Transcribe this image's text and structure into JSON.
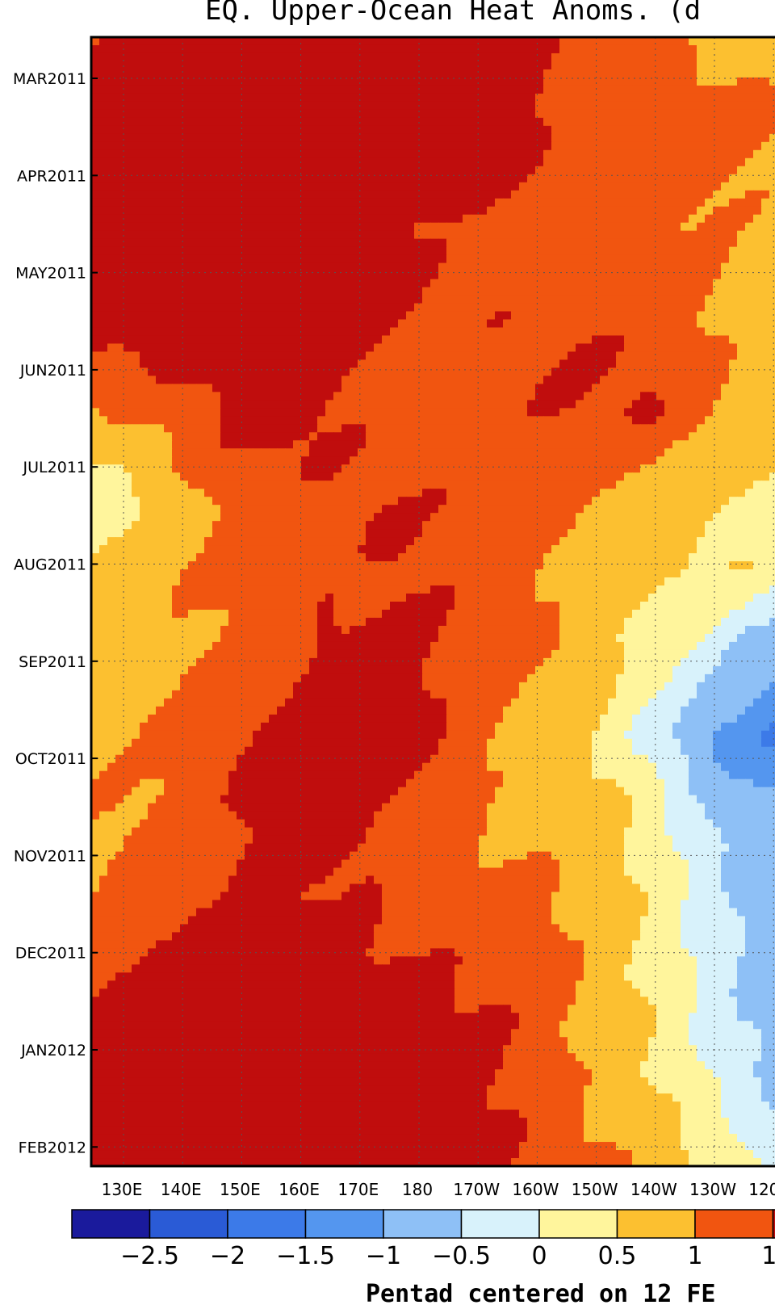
{
  "chart_data": {
    "type": "heatmap",
    "title": "EQ. Upper-Ocean Heat Anoms. (d",
    "footer": "Pentad centered on 12 FE",
    "y_ticks": [
      "MAR2011",
      "APR2011",
      "MAY2011",
      "JUN2011",
      "JUL2011",
      "AUG2011",
      "SEP2011",
      "OCT2011",
      "NOV2011",
      "DEC2011",
      "JAN2012",
      "FEB2012"
    ],
    "x_ticks": [
      "130E",
      "140E",
      "150E",
      "160E",
      "170E",
      "180",
      "170W",
      "160W",
      "150W",
      "140W",
      "130W",
      "120W"
    ],
    "colorbar": {
      "labels": [
        "-2.5",
        "-2",
        "-1.5",
        "-1",
        "-0.5",
        "0",
        "0.5",
        "1",
        "1."
      ],
      "colors": [
        "#1a1a9c",
        "#2a5bd6",
        "#3c7ae8",
        "#5496ef",
        "#8ec0f6",
        "#d8f2fb",
        "#fff59c",
        "#fcc030",
        "#f15510",
        "#c00d0d"
      ]
    },
    "grid": true,
    "legend_placement": "bottom",
    "bands": [
      {
        "t": 0,
        "b": [
          [
            -2.8,
            1.2
          ],
          [
            0.2,
            1.6
          ],
          [
            1.7,
            2.5
          ],
          [
            6.3,
            1.8
          ],
          [
            9.1,
            1.2
          ],
          [
            11.7,
            0.6
          ],
          [
            13.9,
            0.2
          ],
          [
            16.4,
            0.1
          ],
          [
            20.4,
            0.4
          ],
          [
            25,
            0.7
          ]
        ]
      },
      {
        "t": 0.08,
        "b": [
          [
            -2.8,
            1.0
          ],
          [
            0.2,
            1.7
          ],
          [
            1.1,
            2.3
          ],
          [
            5.7,
            2.4
          ],
          [
            8.3,
            1.4
          ],
          [
            11.3,
            1.1
          ],
          [
            13.6,
            0.9
          ],
          [
            15.0,
            0.2
          ],
          [
            18,
            0.6
          ],
          [
            25,
            0.9
          ]
        ]
      },
      {
        "t": 0.17,
        "b": [
          [
            -2.8,
            0.4
          ],
          [
            0.8,
            2.3
          ],
          [
            3.9,
            1.7
          ],
          [
            8.5,
            1.1
          ],
          [
            11.6,
            0.9
          ],
          [
            13.7,
            0.3
          ],
          [
            15.1,
            0.3
          ],
          [
            18,
            0.9
          ],
          [
            25,
            1.0
          ]
        ]
      },
      {
        "t": 0.25,
        "b": [
          [
            -2.8,
            1.3
          ],
          [
            1.2,
            2.1
          ],
          [
            4.2,
            1.6
          ],
          [
            6.8,
            1.5
          ],
          [
            10.0,
            1.2
          ],
          [
            12.3,
            0.8
          ],
          [
            13.9,
            -0.2
          ],
          [
            15.6,
            0.1
          ],
          [
            18.6,
            0.7
          ],
          [
            25,
            0.8
          ]
        ]
      },
      {
        "t": 0.33,
        "b": [
          [
            -2.8,
            0.6
          ],
          [
            1.2,
            1.3
          ],
          [
            3.0,
            1.7
          ],
          [
            6.4,
            1.2
          ],
          [
            9.6,
            1.6
          ],
          [
            11.3,
            0.9
          ],
          [
            13.2,
            0.4
          ],
          [
            14.8,
            -0.3
          ],
          [
            18.8,
            0.2
          ],
          [
            25,
            0.5
          ]
        ]
      },
      {
        "t": 0.42,
        "b": [
          [
            -2.8,
            -0.3
          ],
          [
            0.8,
            0.4
          ],
          [
            2.2,
            1.1
          ],
          [
            4.7,
            1.6
          ],
          [
            7.6,
            1.2
          ],
          [
            10.2,
            0.6
          ],
          [
            12.1,
            0.2
          ],
          [
            14.0,
            -0.1
          ],
          [
            17.4,
            -0.3
          ],
          [
            25,
            0.1
          ]
        ]
      },
      {
        "t": 0.47,
        "b": [
          [
            -2.8,
            0.1
          ],
          [
            0.4,
            0.6
          ],
          [
            2.8,
            1.3
          ],
          [
            5.1,
            1.5
          ],
          [
            6.2,
            1.3
          ],
          [
            9.8,
            0.7
          ],
          [
            11.5,
            0.3
          ],
          [
            13.2,
            -0.6
          ],
          [
            15.2,
            -1.2
          ],
          [
            19.6,
            -1.4
          ],
          [
            25,
            -0.9
          ]
        ]
      },
      {
        "t": 0.54,
        "b": [
          [
            -2.8,
            0.2
          ],
          [
            0.8,
            0.8
          ],
          [
            2.4,
            1.2
          ],
          [
            3.9,
            1.7
          ],
          [
            7.8,
            1.1
          ],
          [
            9.8,
            0.3
          ],
          [
            11.3,
            -0.7
          ],
          [
            13.2,
            -1.2
          ],
          [
            14.7,
            -1.6
          ],
          [
            18.5,
            -1.4
          ],
          [
            25,
            -1.3
          ]
        ]
      },
      {
        "t": 0.62,
        "b": [
          [
            -2.8,
            -0.3
          ],
          [
            0.4,
            0.9
          ],
          [
            2.6,
            1.6
          ],
          [
            4.6,
            2.0
          ],
          [
            6.1,
            1.4
          ],
          [
            8.3,
            0.7
          ],
          [
            10.6,
            -1.1
          ],
          [
            12.3,
            -1.6
          ],
          [
            14.5,
            -2.1
          ],
          [
            17.0,
            -1.7
          ],
          [
            19.8,
            -1.3
          ],
          [
            25,
            -1.7
          ]
        ]
      },
      {
        "t": 0.68,
        "b": [
          [
            -2.8,
            0.6
          ],
          [
            1.0,
            1.2
          ],
          [
            2.9,
            1.7
          ],
          [
            4.4,
            1.6
          ],
          [
            6.7,
            1.0
          ],
          [
            9.0,
            0.5
          ],
          [
            10.8,
            -0.6
          ],
          [
            12.7,
            -1.1
          ],
          [
            14.6,
            -1.3
          ],
          [
            17.4,
            -1.6
          ],
          [
            20.4,
            -2.0
          ],
          [
            25,
            -1.6
          ]
        ]
      },
      {
        "t": 0.76,
        "b": [
          [
            -2.8,
            0.4
          ],
          [
            1.0,
            1.3
          ],
          [
            2.7,
            1.5
          ],
          [
            4.6,
            1.5
          ],
          [
            7.4,
            1.1
          ],
          [
            9.6,
            0.4
          ],
          [
            11.3,
            -0.5
          ],
          [
            13.2,
            -1.1
          ],
          [
            15.4,
            -0.8
          ],
          [
            17.9,
            -1.2
          ],
          [
            21,
            -1.1
          ],
          [
            25,
            -1.3
          ]
        ]
      },
      {
        "t": 0.83,
        "b": [
          [
            -2.8,
            1.0
          ],
          [
            0.6,
            1.6
          ],
          [
            2.7,
            1.8
          ],
          [
            5.0,
            1.7
          ],
          [
            7.6,
            1.2
          ],
          [
            9.9,
            0.4
          ],
          [
            11.3,
            -0.6
          ],
          [
            12.7,
            -1.3
          ],
          [
            14.8,
            -1.6
          ],
          [
            17.2,
            -1.3
          ],
          [
            21.4,
            -1.2
          ],
          [
            25,
            -1.2
          ]
        ]
      },
      {
        "t": 0.91,
        "b": [
          [
            -2.8,
            1.6
          ],
          [
            0.8,
            2.2
          ],
          [
            2.4,
            2.1
          ],
          [
            4.6,
            2.0
          ],
          [
            7.2,
            1.4
          ],
          [
            9.6,
            0.6
          ],
          [
            11.1,
            -0.4
          ],
          [
            12.7,
            -1.3
          ],
          [
            14.8,
            -1.8
          ],
          [
            16.9,
            -1.3
          ],
          [
            20.7,
            -1.1
          ],
          [
            25,
            -1.3
          ]
        ]
      },
      {
        "t": 1.0,
        "b": [
          [
            -2.8,
            1.3
          ],
          [
            1.1,
            2.1
          ],
          [
            3.6,
            2.0
          ],
          [
            5.5,
            1.6
          ],
          [
            7.8,
            1.5
          ],
          [
            9.4,
            0.9
          ],
          [
            10.8,
            0.3
          ],
          [
            12.5,
            -0.7
          ],
          [
            15.5,
            -1.3
          ],
          [
            18.8,
            -1.1
          ],
          [
            25,
            -0.9
          ]
        ]
      }
    ]
  }
}
